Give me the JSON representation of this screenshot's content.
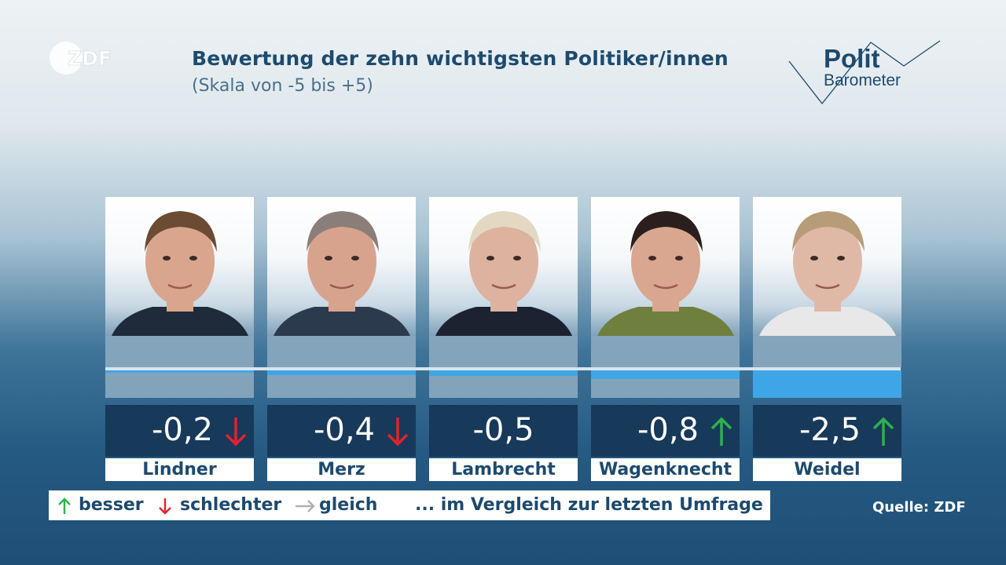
{
  "header": {
    "title": "Bewertung der zehn wichtigsten Politiker/innen",
    "subtitle": "(Skala von -5 bis +5)",
    "logo_text": "ZDF",
    "brand_top": "Polit",
    "brand_bottom": "Barometer"
  },
  "chart_data": {
    "type": "bar",
    "title": "Bewertung der zehn wichtigsten Politiker/innen",
    "subtitle": "(Skala von -5 bis +5)",
    "ylim": [
      -5,
      5
    ],
    "categories": [
      "Lindner",
      "Merz",
      "Lambrecht",
      "Wagenknecht",
      "Weidel"
    ],
    "values": [
      -0.2,
      -0.4,
      -0.5,
      -0.8,
      -2.5
    ],
    "value_labels": [
      "-0,2",
      "-0,4",
      "-0,5",
      "-0,8",
      "-2,5"
    ],
    "trend": [
      "down",
      "down",
      "none",
      "up",
      "up"
    ],
    "colors": {
      "bar": "#3ea6e6",
      "up": "#2bb24c",
      "down": "#e0242b",
      "same": "#b0b0b0"
    }
  },
  "legend": {
    "better": "besser",
    "worse": "schlechter",
    "same": "gleich",
    "comparison": "... im Vergleich zur letzten Umfrage"
  },
  "source": "Quelle: ZDF"
}
